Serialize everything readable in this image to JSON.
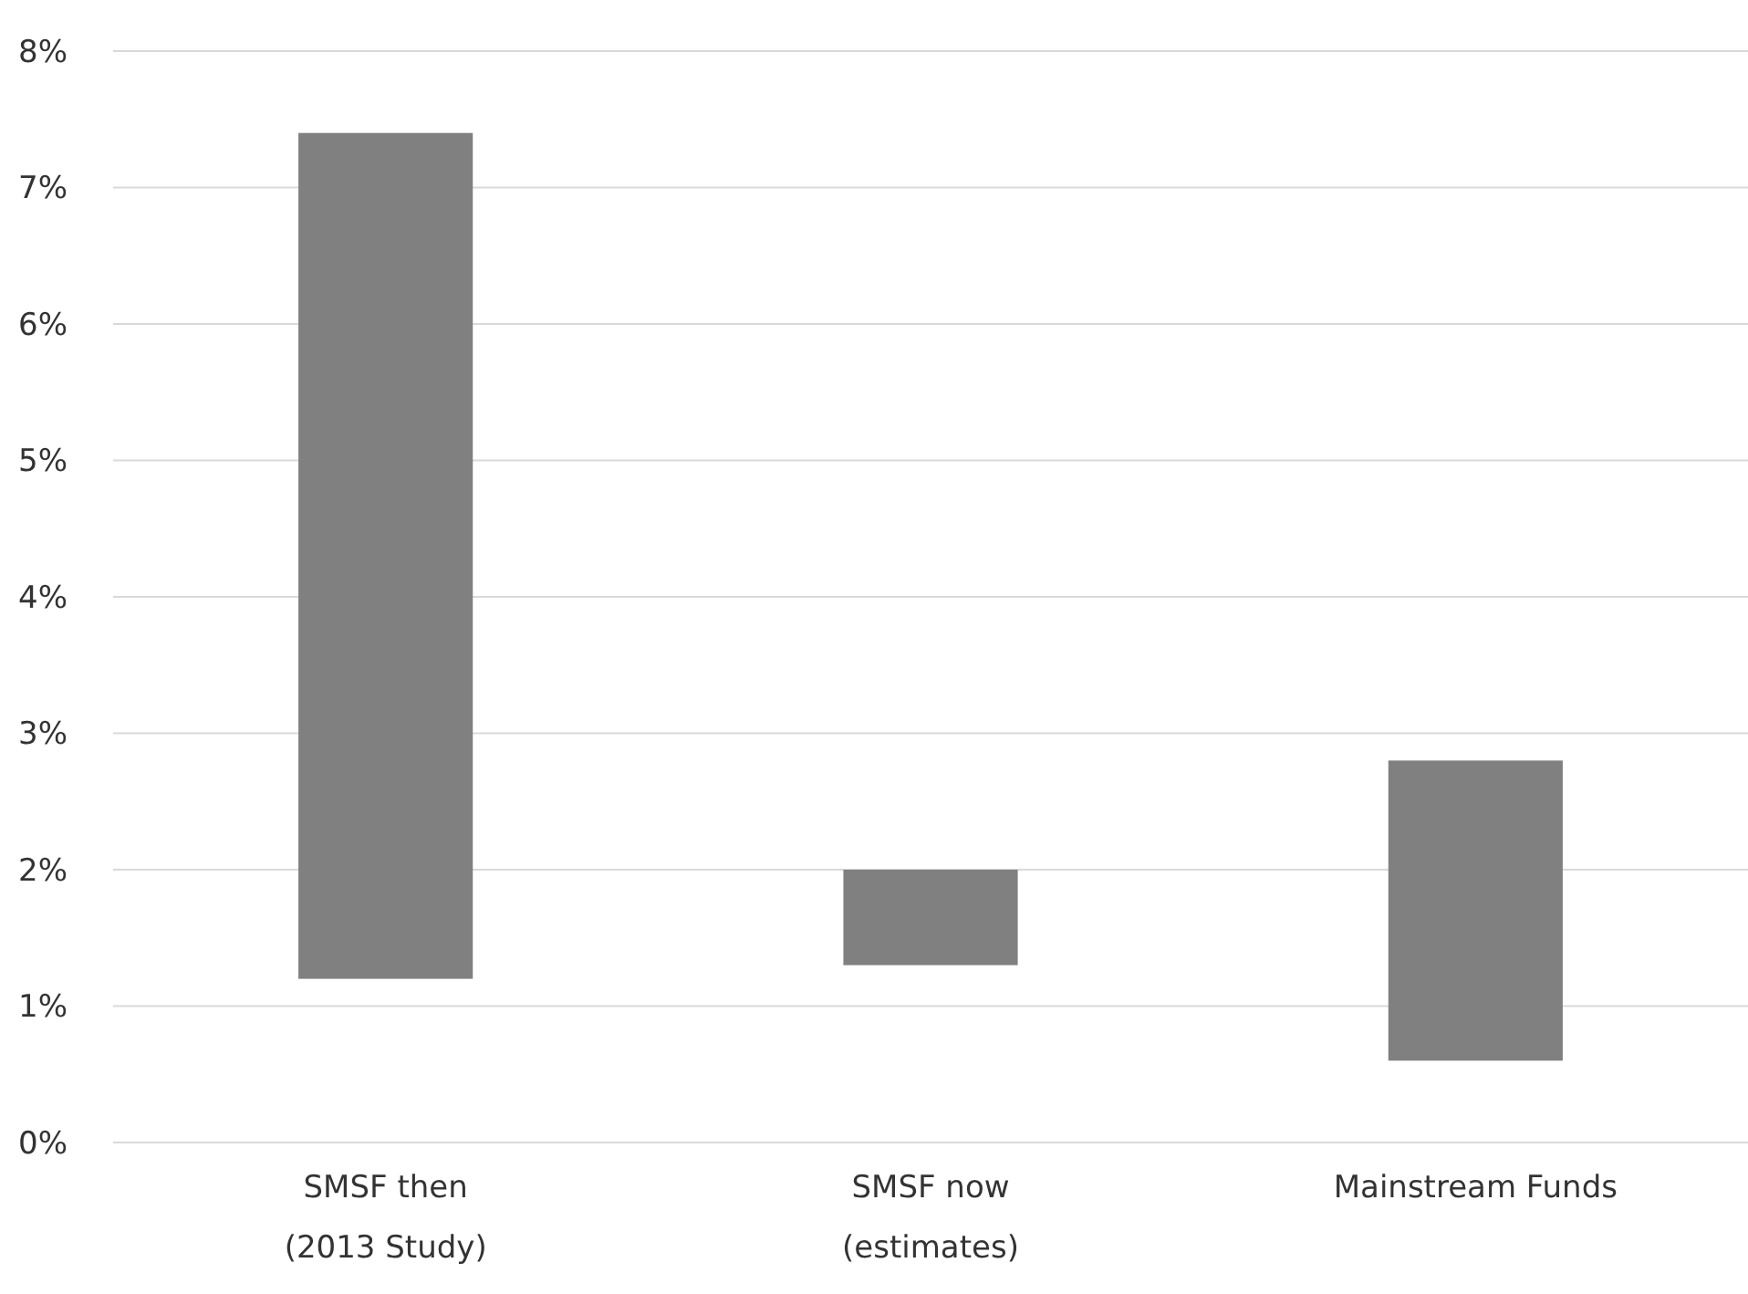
{
  "chart_data": {
    "type": "bar",
    "categories": [
      "SMSF then\n(2013 Study)",
      "SMSF now\n(estimates)",
      "Mainstream Funds"
    ],
    "values": [
      6.2,
      0.7,
      2.2
    ],
    "base": [
      1.2,
      1.3,
      0.6
    ],
    "color": "#808080",
    "ylim": [
      0,
      8
    ],
    "yticks": [
      {
        "value": 0,
        "label": "0%"
      },
      {
        "value": 1,
        "label": "1%"
      },
      {
        "value": 2,
        "label": "2%"
      },
      {
        "value": 3,
        "label": "3%"
      },
      {
        "value": 4,
        "label": "4%"
      },
      {
        "value": 5,
        "label": "5%"
      },
      {
        "value": 6,
        "label": "6%"
      },
      {
        "value": 7,
        "label": "7%"
      },
      {
        "value": 8,
        "label": "8%"
      }
    ],
    "grid": "y"
  }
}
